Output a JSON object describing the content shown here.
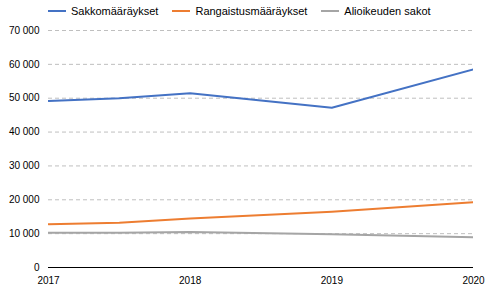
{
  "chart_data": {
    "type": "line",
    "x": [
      2017,
      2017.5,
      2018,
      2019,
      2020
    ],
    "series": [
      {
        "name": "Sakkomääräykset",
        "color": "#4472C4",
        "values": [
          49200,
          50000,
          51500,
          47200,
          58500
        ]
      },
      {
        "name": "Rangaistusmääräykset",
        "color": "#ED7D31",
        "values": [
          12800,
          13200,
          14500,
          16500,
          19300
        ]
      },
      {
        "name": "Alioikeuden sakot",
        "color": "#A5A5A5",
        "values": [
          10300,
          10300,
          10500,
          9800,
          8900
        ]
      }
    ],
    "xlim": [
      2017,
      2020
    ],
    "xticks": [
      2017,
      2018,
      2019,
      2020
    ],
    "ylim": [
      0,
      70000
    ],
    "yticks": [
      0,
      {
        "value": 10000,
        "label": "10 000"
      },
      {
        "value": 20000,
        "label": "20 000"
      },
      {
        "value": 30000,
        "label": "30 000"
      },
      {
        "value": 40000,
        "label": "40 000"
      },
      {
        "value": 50000,
        "label": "50 000"
      },
      {
        "value": 60000,
        "label": "60 000"
      },
      {
        "value": 70000,
        "label": "70 000"
      }
    ],
    "grid": true,
    "legend": "upper left"
  }
}
